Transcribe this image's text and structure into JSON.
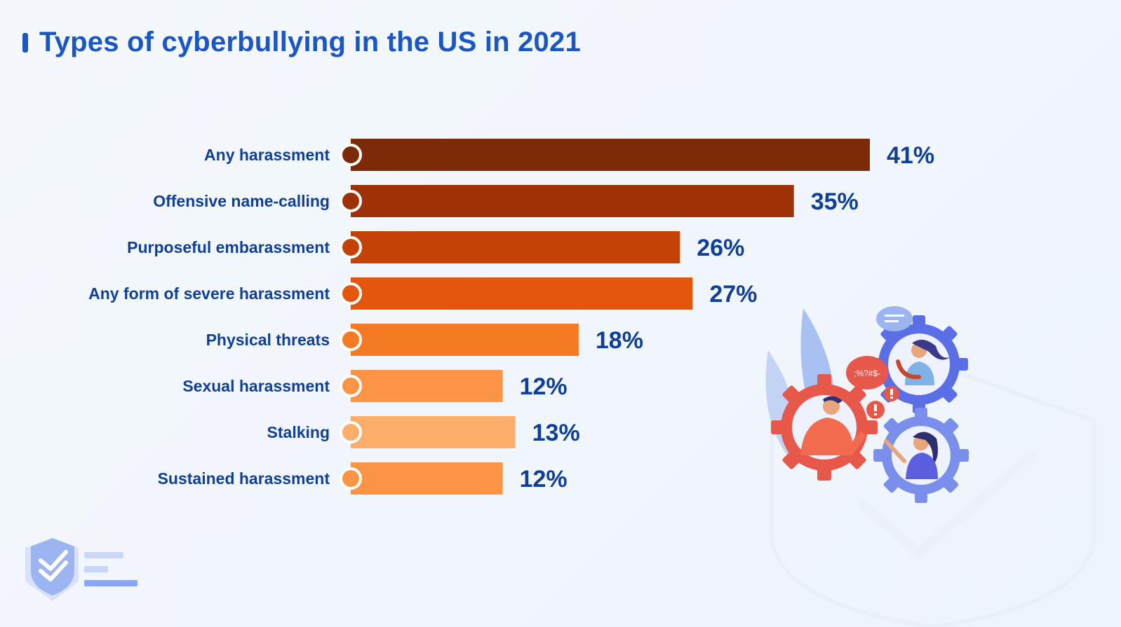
{
  "chart_data": {
    "type": "bar",
    "orientation": "horizontal",
    "title": "Types of cyberbullying in the US in 2021",
    "categories": [
      "Any harassment",
      "Offensive name-calling",
      "Purposeful embarassment",
      "Any form of severe harassment",
      "Physical threats",
      "Sexual harassment",
      "Stalking",
      "Sustained harassment"
    ],
    "values": [
      41,
      35,
      26,
      27,
      18,
      12,
      13,
      12
    ],
    "value_labels": [
      "41%",
      "35%",
      "26%",
      "27%",
      "18%",
      "12%",
      "13%",
      "12%"
    ],
    "unit": "%",
    "xlim": [
      0,
      41
    ],
    "grid": false,
    "legend": "none",
    "bar_colors": [
      "#7d2a09",
      "#9e3206",
      "#c44206",
      "#e5560d",
      "#f47a24",
      "#fb9545",
      "#fead6a",
      "#fb9545"
    ]
  },
  "colors": {
    "title": "#1a56c4",
    "label": "#0f3f96",
    "value": "#0f3f96"
  },
  "decor": {
    "bubble_text": ";%?#$-",
    "icons": [
      "shield-check-icon",
      "gear-people-illustration"
    ]
  }
}
